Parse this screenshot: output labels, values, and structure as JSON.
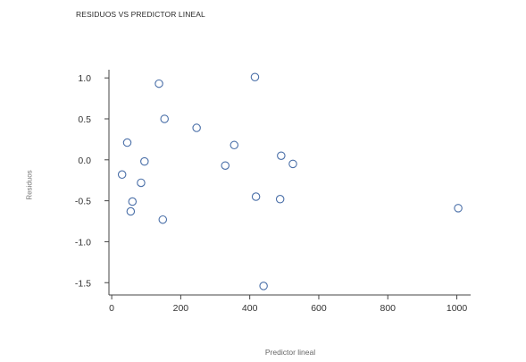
{
  "chart_data": {
    "type": "scatter",
    "title": "RESIDUOS VS PREDICTOR LINEAL",
    "xlabel": "Predictor lineal",
    "ylabel": "Residuos",
    "xlim": [
      -8,
      1040
    ],
    "ylim": [
      -1.65,
      1.1
    ],
    "x_ticks": [
      0,
      200,
      400,
      600,
      800,
      1000
    ],
    "x_tick_labels": [
      "0",
      "200",
      "400",
      "600",
      "800",
      "1000"
    ],
    "y_ticks": [
      1.0,
      0.5,
      0.0,
      -0.5,
      -1.0,
      -1.5
    ],
    "y_tick_labels": [
      "1.0",
      "0.5",
      "0.0",
      "-0.5",
      "-1.0",
      "-1.5"
    ],
    "grid": false,
    "marker": "open-circle",
    "marker_color": "#4a6fa8",
    "axis_color": "#444444",
    "points": [
      {
        "x": 30,
        "y": -0.18
      },
      {
        "x": 45,
        "y": 0.21
      },
      {
        "x": 55,
        "y": -0.63
      },
      {
        "x": 60,
        "y": -0.51
      },
      {
        "x": 85,
        "y": -0.28
      },
      {
        "x": 95,
        "y": -0.02
      },
      {
        "x": 137,
        "y": 0.93
      },
      {
        "x": 148,
        "y": -0.73
      },
      {
        "x": 153,
        "y": 0.5
      },
      {
        "x": 246,
        "y": 0.39
      },
      {
        "x": 329,
        "y": -0.07
      },
      {
        "x": 355,
        "y": 0.18
      },
      {
        "x": 415,
        "y": 1.01
      },
      {
        "x": 418,
        "y": -0.45
      },
      {
        "x": 440,
        "y": -1.54
      },
      {
        "x": 488,
        "y": -0.48
      },
      {
        "x": 491,
        "y": 0.05
      },
      {
        "x": 525,
        "y": -0.05
      },
      {
        "x": 1004,
        "y": -0.59
      }
    ]
  }
}
